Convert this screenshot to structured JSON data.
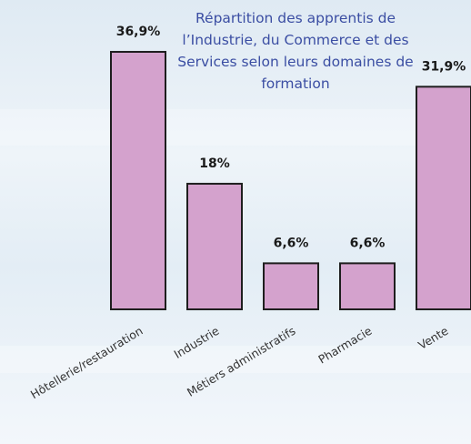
{
  "chart_data": {
    "type": "bar",
    "title": "Répartition des apprentis de l’Industrie, du Commerce et des Services selon leurs domaines de formation",
    "categories": [
      "Hôtellerie/restauration",
      "Industrie",
      "Métiers administratifs",
      "Pharmacie",
      "Vente"
    ],
    "values": [
      36.9,
      18,
      6.6,
      6.6,
      31.9
    ],
    "value_labels": [
      "36,9%",
      "18%",
      "6,6%",
      "6,6%",
      "31,9%"
    ],
    "color": "#d4a2cd"
  }
}
